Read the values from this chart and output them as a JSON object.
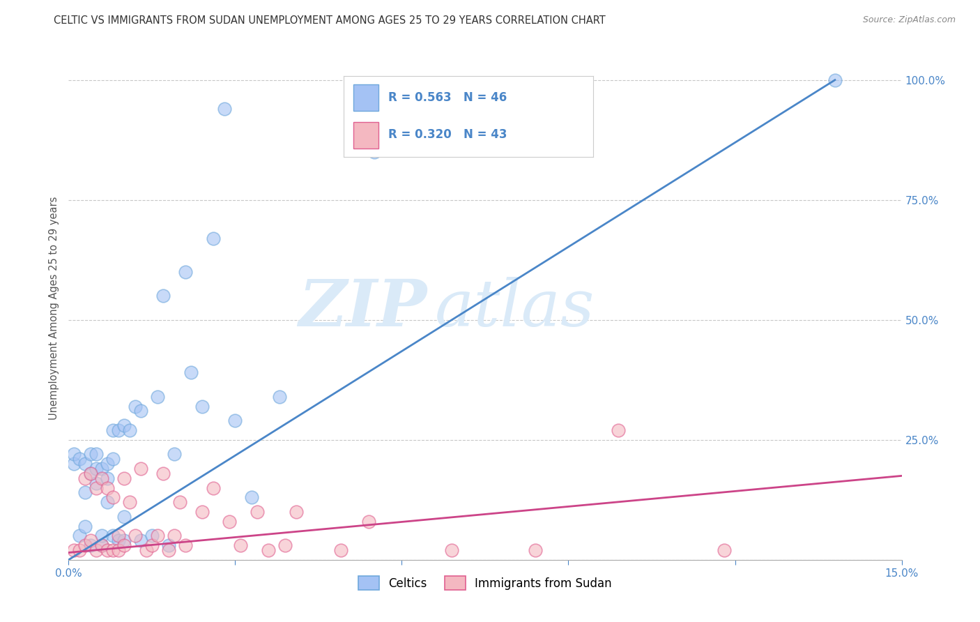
{
  "title": "CELTIC VS IMMIGRANTS FROM SUDAN UNEMPLOYMENT AMONG AGES 25 TO 29 YEARS CORRELATION CHART",
  "source": "Source: ZipAtlas.com",
  "ylabel": "Unemployment Among Ages 25 to 29 years",
  "xlim": [
    0.0,
    0.15
  ],
  "ylim": [
    0.0,
    1.05
  ],
  "yticks": [
    0.0,
    0.25,
    0.5,
    0.75,
    1.0
  ],
  "ytick_labels": [
    "",
    "25.0%",
    "50.0%",
    "75.0%",
    "100.0%"
  ],
  "xticks": [
    0.0,
    0.03,
    0.06,
    0.09,
    0.12,
    0.15
  ],
  "xtick_labels": [
    "0.0%",
    "",
    "",
    "",
    "",
    "15.0%"
  ],
  "blue_R": 0.563,
  "blue_N": 46,
  "pink_R": 0.32,
  "pink_N": 43,
  "blue_color": "#a4c2f4",
  "pink_color": "#f4b8c1",
  "blue_edge_color": "#6fa8dc",
  "pink_edge_color": "#e06090",
  "blue_line_color": "#4a86c8",
  "pink_line_color": "#cc4488",
  "legend_label_blue": "Celtics",
  "legend_label_pink": "Immigrants from Sudan",
  "blue_scatter_x": [
    0.001,
    0.001,
    0.002,
    0.002,
    0.003,
    0.003,
    0.003,
    0.004,
    0.004,
    0.004,
    0.005,
    0.005,
    0.005,
    0.006,
    0.006,
    0.006,
    0.007,
    0.007,
    0.007,
    0.008,
    0.008,
    0.008,
    0.009,
    0.009,
    0.01,
    0.01,
    0.01,
    0.011,
    0.012,
    0.013,
    0.013,
    0.015,
    0.016,
    0.017,
    0.018,
    0.019,
    0.021,
    0.022,
    0.024,
    0.026,
    0.028,
    0.03,
    0.033,
    0.038,
    0.055,
    0.138
  ],
  "blue_scatter_y": [
    0.2,
    0.22,
    0.05,
    0.21,
    0.07,
    0.14,
    0.2,
    0.22,
    0.03,
    0.18,
    0.16,
    0.19,
    0.22,
    0.03,
    0.05,
    0.19,
    0.12,
    0.17,
    0.2,
    0.05,
    0.21,
    0.27,
    0.04,
    0.27,
    0.04,
    0.09,
    0.28,
    0.27,
    0.32,
    0.04,
    0.31,
    0.05,
    0.34,
    0.55,
    0.03,
    0.22,
    0.6,
    0.39,
    0.32,
    0.67,
    0.94,
    0.29,
    0.13,
    0.34,
    0.85,
    1.0
  ],
  "pink_scatter_x": [
    0.001,
    0.002,
    0.003,
    0.003,
    0.004,
    0.004,
    0.005,
    0.005,
    0.006,
    0.006,
    0.007,
    0.007,
    0.008,
    0.008,
    0.009,
    0.009,
    0.01,
    0.01,
    0.011,
    0.012,
    0.013,
    0.014,
    0.015,
    0.016,
    0.017,
    0.018,
    0.019,
    0.02,
    0.021,
    0.024,
    0.026,
    0.029,
    0.031,
    0.034,
    0.036,
    0.039,
    0.041,
    0.049,
    0.054,
    0.069,
    0.084,
    0.099,
    0.118
  ],
  "pink_scatter_y": [
    0.02,
    0.02,
    0.03,
    0.17,
    0.04,
    0.18,
    0.02,
    0.15,
    0.03,
    0.17,
    0.02,
    0.15,
    0.02,
    0.13,
    0.02,
    0.05,
    0.03,
    0.17,
    0.12,
    0.05,
    0.19,
    0.02,
    0.03,
    0.05,
    0.18,
    0.02,
    0.05,
    0.12,
    0.03,
    0.1,
    0.15,
    0.08,
    0.03,
    0.1,
    0.02,
    0.03,
    0.1,
    0.02,
    0.08,
    0.02,
    0.02,
    0.27,
    0.02
  ],
  "blue_line_x": [
    0.0,
    0.138
  ],
  "blue_line_y": [
    0.0,
    1.0
  ],
  "pink_line_x": [
    0.0,
    0.15
  ],
  "pink_line_y": [
    0.015,
    0.175
  ],
  "watermark_zip": "ZIP",
  "watermark_atlas": "atlas",
  "background_color": "#ffffff",
  "grid_color": "#c8c8c8",
  "title_fontsize": 10.5,
  "axis_label_fontsize": 10.5,
  "tick_fontsize": 11,
  "right_tick_color": "#4a86c8"
}
